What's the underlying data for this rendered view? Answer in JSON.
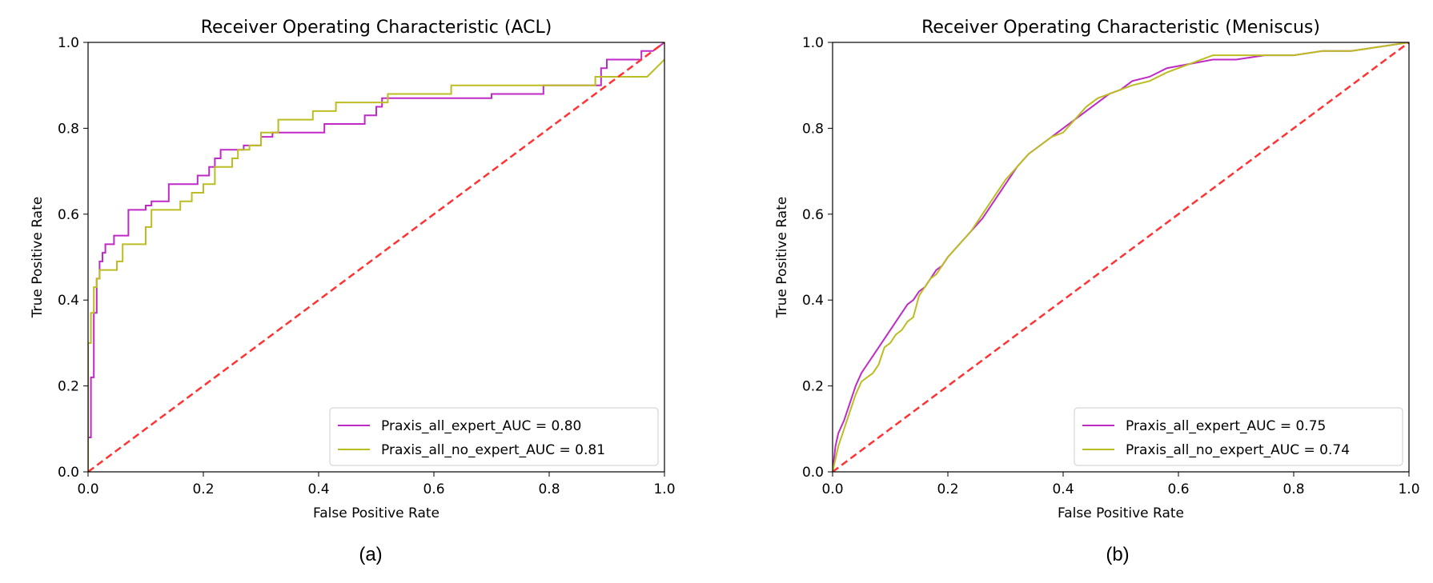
{
  "chart_data": [
    {
      "type": "line",
      "title": "Receiver Operating Characteristic (ACL)",
      "xlabel": "False Positive Rate",
      "ylabel": "True Positive Rate",
      "xlim": [
        0.0,
        1.0
      ],
      "ylim": [
        0.0,
        1.0
      ],
      "xticks": [
        "0.0",
        "0.2",
        "0.4",
        "0.6",
        "0.8",
        "1.0"
      ],
      "yticks": [
        "0.0",
        "0.2",
        "0.4",
        "0.6",
        "0.8",
        "1.0"
      ],
      "legend_position": "lower-right",
      "caption": "(a)",
      "diagonal": {
        "name": "chance",
        "color": "#ff3333",
        "x": [
          0,
          1
        ],
        "y": [
          0,
          1
        ]
      },
      "series": [
        {
          "name": "Praxis_all_expert_AUC = 0.80",
          "color": "#bf2ac6",
          "x": [
            0.0,
            0.0,
            0.005,
            0.005,
            0.01,
            0.01,
            0.015,
            0.015,
            0.02,
            0.02,
            0.025,
            0.025,
            0.03,
            0.03,
            0.045,
            0.045,
            0.07,
            0.07,
            0.1,
            0.1,
            0.11,
            0.11,
            0.14,
            0.14,
            0.19,
            0.19,
            0.21,
            0.21,
            0.22,
            0.22,
            0.23,
            0.23,
            0.27,
            0.27,
            0.3,
            0.3,
            0.32,
            0.32,
            0.41,
            0.41,
            0.48,
            0.48,
            0.5,
            0.5,
            0.51,
            0.51,
            0.7,
            0.7,
            0.79,
            0.79,
            0.89,
            0.89,
            0.9,
            0.9,
            0.96,
            0.96,
            0.98,
            1.0
          ],
          "y": [
            0.0,
            0.08,
            0.08,
            0.22,
            0.22,
            0.37,
            0.37,
            0.45,
            0.45,
            0.49,
            0.49,
            0.51,
            0.51,
            0.53,
            0.53,
            0.55,
            0.55,
            0.61,
            0.61,
            0.62,
            0.62,
            0.63,
            0.63,
            0.67,
            0.67,
            0.69,
            0.69,
            0.71,
            0.71,
            0.73,
            0.73,
            0.75,
            0.75,
            0.76,
            0.76,
            0.78,
            0.78,
            0.79,
            0.79,
            0.81,
            0.81,
            0.83,
            0.83,
            0.85,
            0.85,
            0.87,
            0.87,
            0.88,
            0.88,
            0.9,
            0.9,
            0.94,
            0.94,
            0.96,
            0.96,
            0.98,
            0.98,
            1.0
          ]
        },
        {
          "name": "Praxis_all_no_expert_AUC = 0.81",
          "color": "#bcbd22",
          "x": [
            0.0,
            0.0,
            0.005,
            0.005,
            0.01,
            0.01,
            0.015,
            0.015,
            0.02,
            0.02,
            0.05,
            0.05,
            0.06,
            0.06,
            0.1,
            0.1,
            0.11,
            0.11,
            0.16,
            0.16,
            0.18,
            0.18,
            0.2,
            0.2,
            0.22,
            0.22,
            0.25,
            0.25,
            0.26,
            0.26,
            0.28,
            0.28,
            0.3,
            0.3,
            0.33,
            0.33,
            0.39,
            0.39,
            0.43,
            0.43,
            0.52,
            0.52,
            0.63,
            0.63,
            0.88,
            0.88,
            0.97,
            1.0
          ],
          "y": [
            0.0,
            0.3,
            0.3,
            0.37,
            0.37,
            0.43,
            0.43,
            0.45,
            0.45,
            0.47,
            0.47,
            0.49,
            0.49,
            0.53,
            0.53,
            0.57,
            0.57,
            0.61,
            0.61,
            0.63,
            0.63,
            0.65,
            0.65,
            0.67,
            0.67,
            0.71,
            0.71,
            0.73,
            0.73,
            0.75,
            0.75,
            0.76,
            0.76,
            0.79,
            0.79,
            0.82,
            0.82,
            0.84,
            0.84,
            0.86,
            0.86,
            0.88,
            0.88,
            0.9,
            0.9,
            0.92,
            0.92,
            0.96
          ]
        }
      ]
    },
    {
      "type": "line",
      "title": "Receiver Operating Characteristic (Meniscus)",
      "xlabel": "False Positive Rate",
      "ylabel": "True Positive Rate",
      "xlim": [
        0.0,
        1.0
      ],
      "ylim": [
        0.0,
        1.0
      ],
      "xticks": [
        "0.0",
        "0.2",
        "0.4",
        "0.6",
        "0.8",
        "1.0"
      ],
      "yticks": [
        "0.0",
        "0.2",
        "0.4",
        "0.6",
        "0.8",
        "1.0"
      ],
      "legend_position": "lower-right",
      "caption": "(b)",
      "diagonal": {
        "name": "chance",
        "color": "#ff3333",
        "x": [
          0,
          1
        ],
        "y": [
          0,
          1
        ]
      },
      "series": [
        {
          "name": "Praxis_all_expert_AUC = 0.75",
          "color": "#bf2ac6",
          "x": [
            0.0,
            0.005,
            0.01,
            0.02,
            0.03,
            0.04,
            0.05,
            0.06,
            0.07,
            0.08,
            0.09,
            0.1,
            0.11,
            0.12,
            0.13,
            0.14,
            0.15,
            0.16,
            0.17,
            0.18,
            0.19,
            0.2,
            0.22,
            0.24,
            0.26,
            0.28,
            0.3,
            0.32,
            0.34,
            0.36,
            0.38,
            0.4,
            0.42,
            0.44,
            0.46,
            0.48,
            0.5,
            0.52,
            0.55,
            0.58,
            0.62,
            0.66,
            0.7,
            0.75,
            0.8,
            0.85,
            0.9,
            0.95,
            1.0
          ],
          "y": [
            0.0,
            0.06,
            0.09,
            0.12,
            0.16,
            0.2,
            0.23,
            0.25,
            0.27,
            0.29,
            0.31,
            0.33,
            0.35,
            0.37,
            0.39,
            0.4,
            0.42,
            0.43,
            0.45,
            0.47,
            0.48,
            0.5,
            0.53,
            0.56,
            0.59,
            0.63,
            0.67,
            0.71,
            0.74,
            0.76,
            0.78,
            0.8,
            0.82,
            0.84,
            0.86,
            0.88,
            0.89,
            0.91,
            0.92,
            0.94,
            0.95,
            0.96,
            0.96,
            0.97,
            0.97,
            0.98,
            0.98,
            0.99,
            1.0
          ]
        },
        {
          "name": "Praxis_all_no_expert_AUC = 0.74",
          "color": "#bcbd22",
          "x": [
            0.0,
            0.005,
            0.01,
            0.02,
            0.03,
            0.04,
            0.05,
            0.06,
            0.07,
            0.08,
            0.09,
            0.1,
            0.11,
            0.12,
            0.13,
            0.14,
            0.15,
            0.16,
            0.17,
            0.18,
            0.19,
            0.2,
            0.22,
            0.24,
            0.26,
            0.28,
            0.3,
            0.32,
            0.34,
            0.36,
            0.38,
            0.4,
            0.42,
            0.44,
            0.46,
            0.48,
            0.5,
            0.52,
            0.55,
            0.58,
            0.62,
            0.66,
            0.7,
            0.75,
            0.8,
            0.85,
            0.9,
            0.95,
            1.0
          ],
          "y": [
            0.0,
            0.03,
            0.06,
            0.1,
            0.14,
            0.18,
            0.21,
            0.22,
            0.23,
            0.25,
            0.29,
            0.3,
            0.32,
            0.33,
            0.35,
            0.36,
            0.41,
            0.43,
            0.45,
            0.46,
            0.48,
            0.5,
            0.53,
            0.56,
            0.6,
            0.64,
            0.68,
            0.71,
            0.74,
            0.76,
            0.78,
            0.79,
            0.82,
            0.85,
            0.87,
            0.88,
            0.89,
            0.9,
            0.91,
            0.93,
            0.95,
            0.97,
            0.97,
            0.97,
            0.97,
            0.98,
            0.98,
            0.99,
            1.0
          ]
        }
      ]
    }
  ]
}
